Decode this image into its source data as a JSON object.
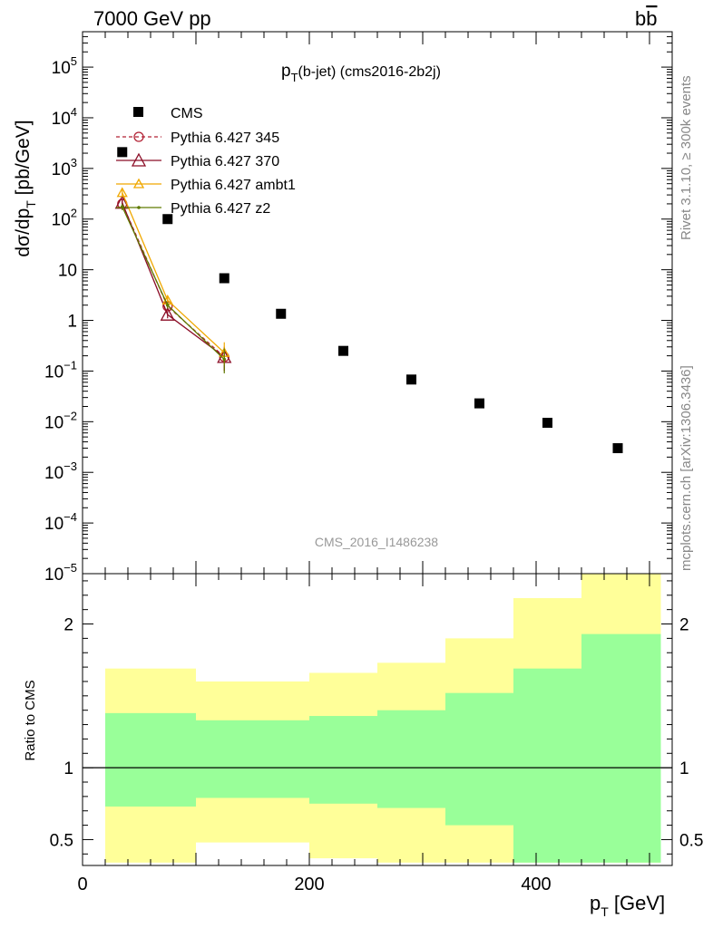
{
  "header": {
    "left": "7000 GeV pp",
    "right_main": "b",
    "right_bar": "b"
  },
  "side_labels": {
    "rivet": "Rivet 3.1.10, ≥ 300k events",
    "mcplots": "mcplots.cern.ch [arXiv:1306.3436]"
  },
  "colors": {
    "cms": "#000000",
    "p345": "#b22234",
    "p370": "#8b0d26",
    "ambt1": "#f0a800",
    "z2": "#5f7a00",
    "band_inner": "#99ff99",
    "band_outer": "#ffff99"
  },
  "chart_data": {
    "type": "scatter",
    "title_main": "p",
    "title_sub": "T",
    "title_rest": "(b-jet) (cms2016-2b2j)",
    "watermark": "CMS_2016_I1486238",
    "xlabel_main": "p",
    "xlabel_sub": "T",
    "xlabel_rest": " [GeV]",
    "ylabel_parts": [
      "dσ/dp",
      "T",
      " [pb/GeV]"
    ],
    "ratio_ylabel": "Ratio to CMS",
    "xlim": [
      0,
      520
    ],
    "ylim": [
      1e-05,
      500000.0
    ],
    "ratio_ylim": [
      0.32,
      2.35
    ],
    "log_y": true,
    "x_ticks": [
      0,
      200,
      400
    ],
    "y_ticks": [
      {
        "v": 100000.0,
        "m": "10",
        "e": "5"
      },
      {
        "v": 10000.0,
        "m": "10",
        "e": "4"
      },
      {
        "v": 1000.0,
        "m": "10",
        "e": "3"
      },
      {
        "v": 100.0,
        "m": "10",
        "e": "2"
      },
      {
        "v": 10,
        "m": "10",
        "e": ""
      },
      {
        "v": 1,
        "m": "1",
        "e": ""
      },
      {
        "v": 0.1,
        "m": "10",
        "e": "−1"
      },
      {
        "v": 0.01,
        "m": "10",
        "e": "−2"
      },
      {
        "v": 0.001,
        "m": "10",
        "e": "−3"
      },
      {
        "v": 0.0001,
        "m": "10",
        "e": "−4"
      },
      {
        "v": 1e-05,
        "m": "10",
        "e": "−5"
      }
    ],
    "ratio_ticks": [
      0.5,
      1,
      2
    ],
    "legend": [
      "CMS",
      "Pythia 6.427 345",
      "Pythia 6.427 370",
      "Pythia 6.427 ambt1",
      "Pythia 6.427 z2"
    ],
    "cms": {
      "x": [
        35,
        75,
        125,
        175,
        230,
        290,
        350,
        410,
        472
      ],
      "y": [
        2100,
        100,
        6.8,
        1.35,
        0.25,
        0.068,
        0.023,
        0.0095,
        0.003
      ]
    },
    "series": [
      {
        "name": "Pythia 6.427 345",
        "x": [
          35,
          75,
          125
        ],
        "y": [
          200,
          1.9,
          0.19
        ],
        "err": [
          [
            170,
            240
          ],
          [
            1.6,
            2.2
          ],
          [
            0.1,
            0.3
          ]
        ]
      },
      {
        "name": "Pythia 6.427 370",
        "x": [
          35,
          75,
          125
        ],
        "y": [
          210,
          1.3,
          0.19
        ],
        "err": [
          [
            180,
            250
          ],
          [
            1.1,
            1.5
          ],
          [
            0.1,
            0.3
          ]
        ]
      },
      {
        "name": "Pythia 6.427 ambt1",
        "x": [
          35,
          75,
          125
        ],
        "y": [
          330,
          2.5,
          0.23
        ],
        "err": [
          [
            290,
            380
          ],
          [
            2.2,
            2.9
          ],
          [
            0.13,
            0.37
          ]
        ]
      },
      {
        "name": "Pythia 6.427 z2",
        "x": [
          35,
          75,
          125
        ],
        "y": [
          175,
          2.0,
          0.17
        ],
        "err": [
          [
            150,
            200
          ],
          [
            1.7,
            2.3
          ],
          [
            0.09,
            0.28
          ]
        ]
      }
    ],
    "ratio_bands": [
      {
        "x0": 20,
        "x1": 100,
        "outer": [
          0.34,
          1.69
        ],
        "inner": [
          0.73,
          1.38
        ]
      },
      {
        "x0": 100,
        "x1": 200,
        "outer": [
          0.48,
          1.6
        ],
        "inner": [
          0.79,
          1.33
        ]
      },
      {
        "x0": 200,
        "x1": 260,
        "outer": [
          0.37,
          1.66
        ],
        "inner": [
          0.75,
          1.36
        ]
      },
      {
        "x0": 260,
        "x1": 320,
        "outer": [
          0.34,
          1.73
        ],
        "inner": [
          0.72,
          1.4
        ]
      },
      {
        "x0": 320,
        "x1": 380,
        "outer": [
          0.34,
          1.9
        ],
        "inner": [
          0.6,
          1.52
        ]
      },
      {
        "x0": 380,
        "x1": 440,
        "outer": [
          0.34,
          2.18
        ],
        "inner": [
          0.34,
          1.69
        ]
      },
      {
        "x0": 440,
        "x1": 510,
        "outer": [
          0.34,
          2.35
        ],
        "inner": [
          0.34,
          1.93
        ]
      }
    ]
  }
}
